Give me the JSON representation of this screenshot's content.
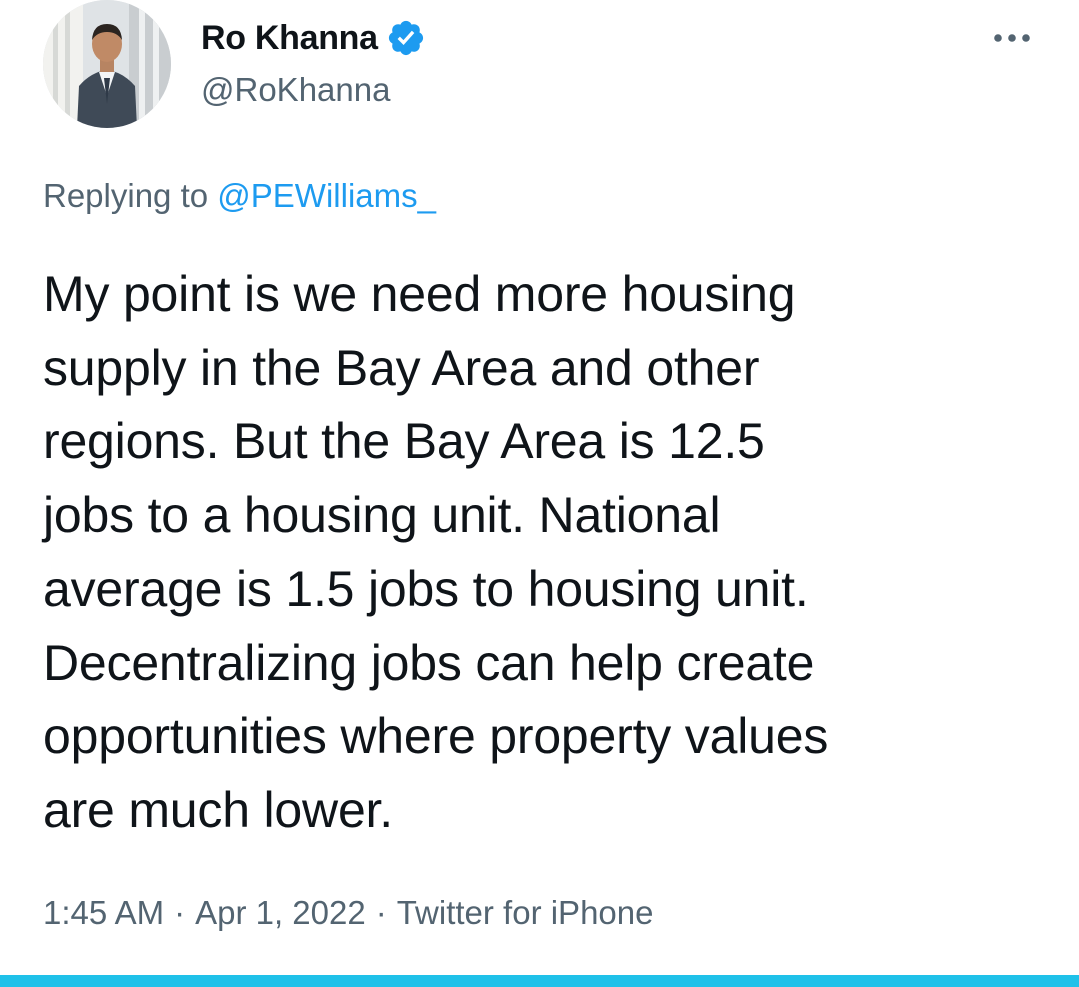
{
  "author": {
    "display_name": "Ro Khanna",
    "handle": "@RoKhanna",
    "verified": true,
    "avatar_icon": "profile-photo"
  },
  "reply": {
    "prefix": "Replying to",
    "mention": "@PEWilliams_"
  },
  "tweet": {
    "lines": [
      "My point is we need more housing",
      "supply in the Bay Area and other",
      "regions. But the Bay Area is 12.5",
      "jobs to a housing unit. National",
      "average is 1.5 jobs to housing unit.",
      "Decentralizing jobs can help create",
      "opportunities where property values",
      "are much lower."
    ]
  },
  "meta": {
    "time": "1:45 AM",
    "date": "Apr 1, 2022",
    "source": "Twitter for iPhone",
    "separator": "·"
  },
  "icons": {
    "more": "more-horizontal-icon",
    "verified": "verified-badge-icon"
  },
  "colors": {
    "text_primary": "#0f1419",
    "text_secondary": "#536471",
    "link": "#1d9bf0",
    "verified": "#1d9bf0",
    "bottom_bar": "#1fc1e9"
  }
}
